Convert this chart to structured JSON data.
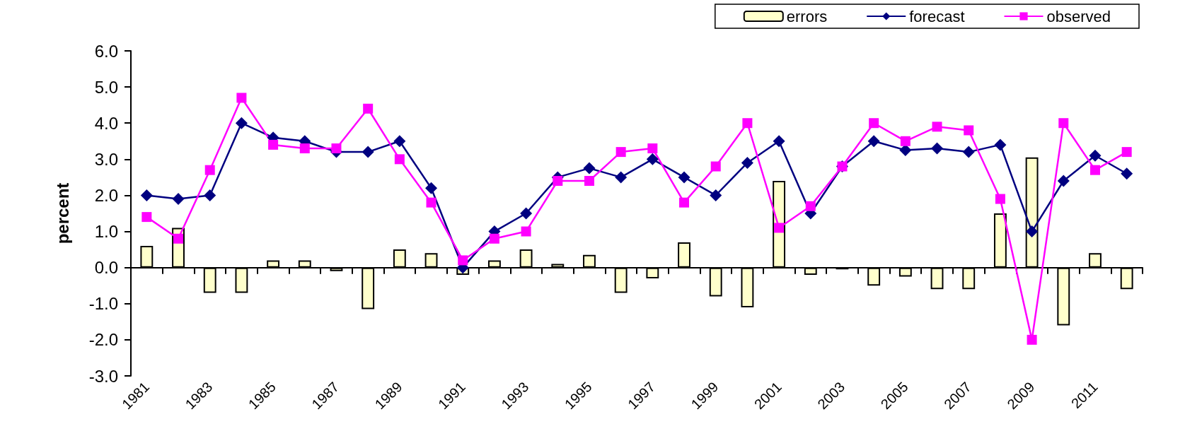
{
  "chart_data": {
    "type": "line",
    "ylabel": "percent",
    "categories": [
      "1981",
      null,
      "1983",
      null,
      "1985",
      null,
      "1987",
      null,
      "1989",
      null,
      "1991",
      null,
      "1993",
      null,
      "1995",
      null,
      "1997",
      null,
      "1999",
      null,
      "2001",
      null,
      "2003",
      null,
      "2005",
      null,
      "2007",
      null,
      "2009",
      null,
      "2011",
      null
    ],
    "series": [
      {
        "name": "errors",
        "type": "bar",
        "color": "#ffffcc",
        "values": [
          0.6,
          1.1,
          -0.7,
          -0.7,
          0.2,
          0.2,
          -0.1,
          -1.15,
          0.5,
          0.4,
          -0.2,
          0.2,
          0.5,
          0.1,
          0.35,
          -0.7,
          -0.3,
          0.7,
          -0.8,
          -1.1,
          2.4,
          -0.2,
          -0.05,
          -0.5,
          -0.25,
          -0.6,
          -0.6,
          1.5,
          3.05,
          -1.6,
          0.4,
          -0.6
        ]
      },
      {
        "name": "forecast",
        "color": "#000080",
        "marker": "diamond",
        "values": [
          2.0,
          1.9,
          2.0,
          4.0,
          3.6,
          3.5,
          3.2,
          3.2,
          3.5,
          2.2,
          0.0,
          1.0,
          1.5,
          2.5,
          2.75,
          2.5,
          3.0,
          2.5,
          2.0,
          2.9,
          3.5,
          1.5,
          2.8,
          3.5,
          3.25,
          3.3,
          3.2,
          3.4,
          1.0,
          2.4,
          3.1,
          2.6
        ]
      },
      {
        "name": "observed",
        "color": "#ff00ff",
        "marker": "square",
        "values": [
          1.4,
          0.8,
          2.7,
          4.7,
          3.4,
          3.3,
          3.3,
          4.4,
          3.0,
          1.8,
          0.2,
          0.8,
          1.0,
          2.4,
          2.4,
          3.2,
          3.3,
          1.8,
          2.8,
          4.0,
          1.1,
          1.7,
          2.8,
          4.0,
          3.5,
          3.9,
          3.8,
          1.9,
          -2.0,
          4.0,
          2.7,
          3.2
        ]
      }
    ],
    "ylim": [
      -3,
      6
    ],
    "yticks": [
      {
        "value": -3,
        "label": "-3.0"
      },
      {
        "value": -2,
        "label": "-2.0"
      },
      {
        "value": -1,
        "label": "-1.0"
      },
      {
        "value": 0,
        "label": "0.0"
      },
      {
        "value": 1,
        "label": "1.0"
      },
      {
        "value": 2,
        "label": "2.0"
      },
      {
        "value": 3,
        "label": "3.0"
      },
      {
        "value": 4,
        "label": "4.0"
      },
      {
        "value": 5,
        "label": "5.0"
      },
      {
        "value": 6,
        "label": "6.0"
      }
    ],
    "legend": "top right",
    "line_style": "solid"
  }
}
